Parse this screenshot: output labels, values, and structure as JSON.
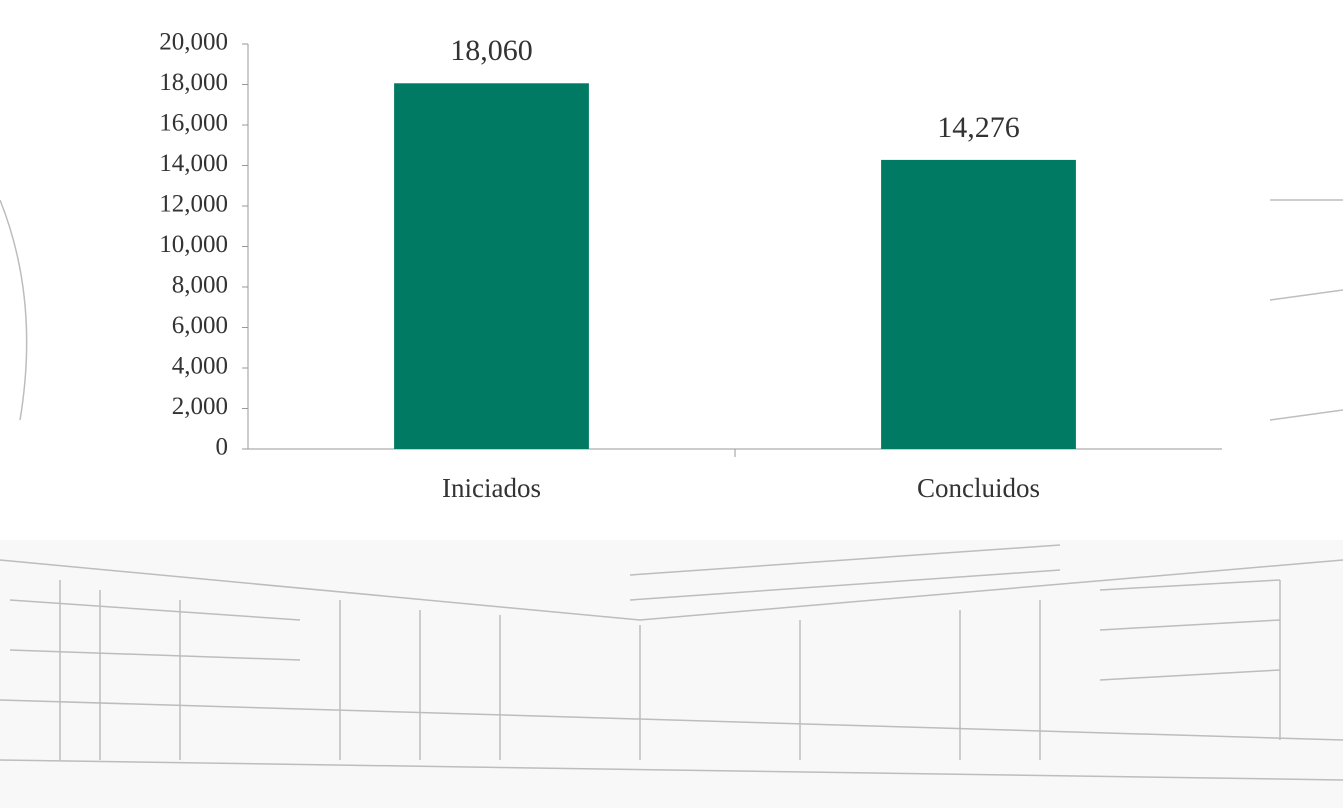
{
  "chart_data": {
    "type": "bar",
    "categories": [
      "Iniciados",
      "Concluidos"
    ],
    "values": [
      18060,
      14276
    ],
    "value_labels": [
      "18,060",
      "14,276"
    ],
    "color": "#007a63",
    "ylim": [
      0,
      20000
    ],
    "yticks": [
      0,
      {
        "value": 2000,
        "label": "2,000"
      },
      {
        "value": 4000,
        "label": "4,000"
      },
      {
        "value": 6000,
        "label": "6,000"
      },
      {
        "value": 8000,
        "label": "8,000"
      },
      {
        "value": 10000,
        "label": "10,000"
      },
      {
        "value": 12000,
        "label": "12,000"
      },
      {
        "value": 14000,
        "label": "14,000"
      },
      {
        "value": 16000,
        "label": "16,000"
      },
      {
        "value": 18000,
        "label": "18,000"
      },
      {
        "value": 20000,
        "label": "20,000"
      }
    ],
    "grid": false
  }
}
